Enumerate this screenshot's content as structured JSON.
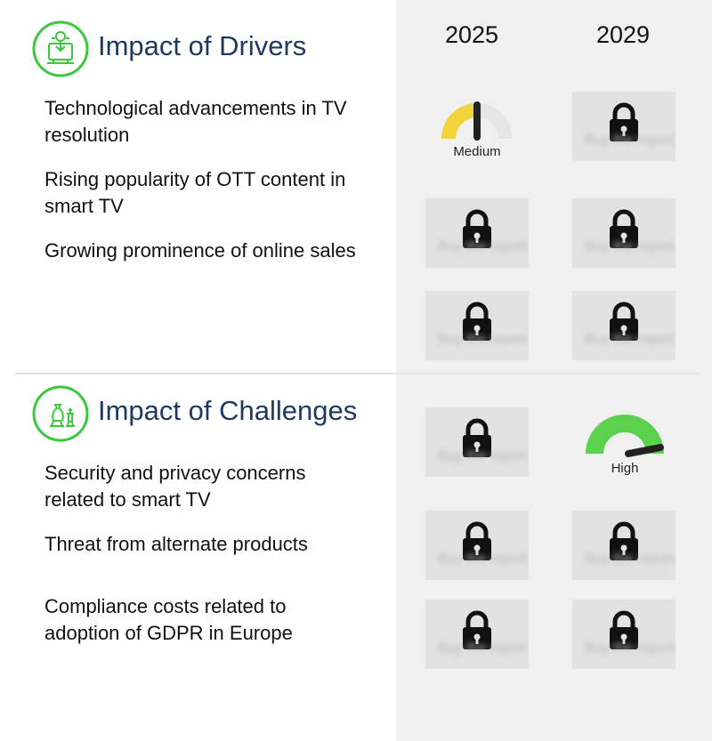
{
  "columns": [
    "2025",
    "2029"
  ],
  "drivers": {
    "title": "Impact of Drivers",
    "items": [
      "Technological advancements in TV resolution",
      "Rising popularity of OTT content in smart TV",
      "Growing prominence of online sales"
    ]
  },
  "challenges": {
    "title": "Impact of Challenges",
    "items": [
      "Security and privacy concerns related to smart TV",
      "Threat from alternate products",
      "Compliance costs related to adoption of GDPR in Europe"
    ]
  },
  "gauges": {
    "driver_1_2025": {
      "label": "Medium",
      "level": 0.5,
      "color": "#f2d33b"
    },
    "challenge_1_2029": {
      "label": "High",
      "level": 1.0,
      "color": "#5bd14e"
    }
  },
  "locked_placeholder": "Buy the report",
  "colors": {
    "accent": "#3cc83c",
    "title": "#1f3a60",
    "panel": "#f0f0f0"
  }
}
